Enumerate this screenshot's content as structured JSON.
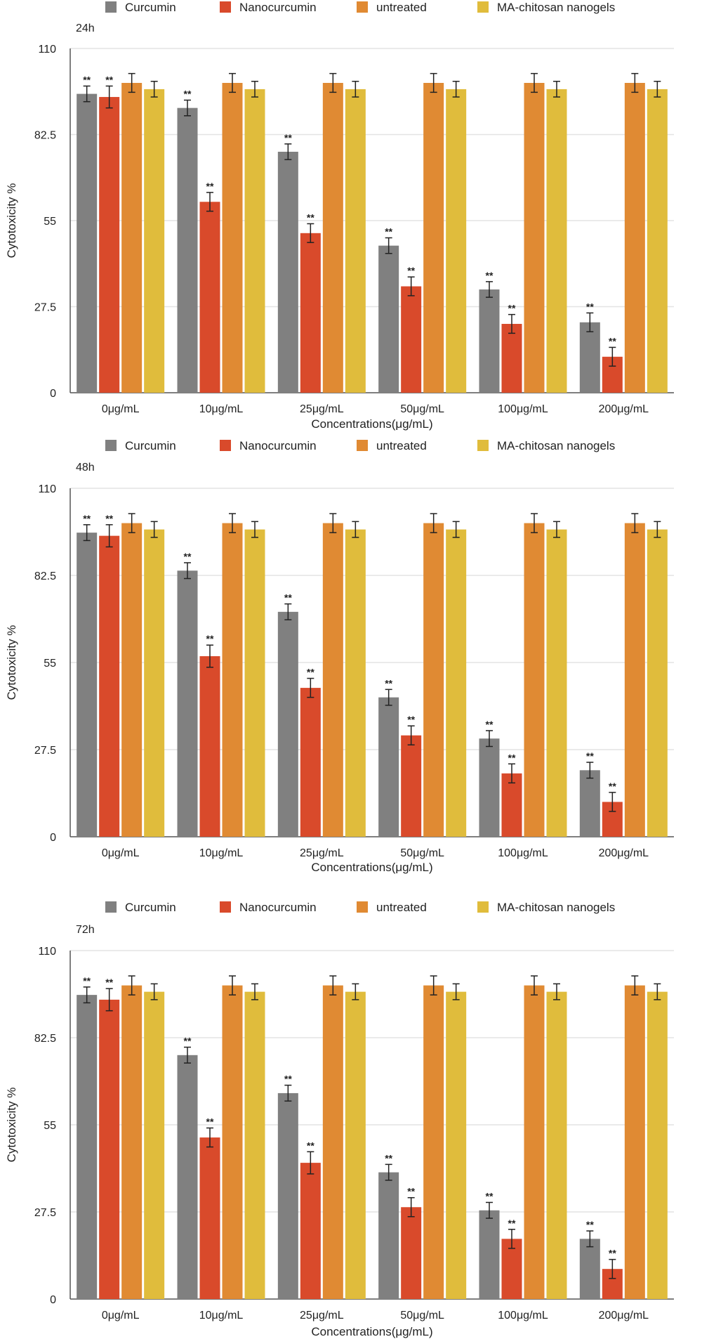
{
  "colors": {
    "Curcumin": "#808080",
    "Nanocurcumin": "#d94a2b",
    "untreated": "#e08a33",
    "MA-chitosan nanogels": "#e0bc3c",
    "grid": "#e4e4e4",
    "axis": "#555555"
  },
  "chart_data": [
    {
      "type": "bar",
      "panel_label": "24h",
      "categories": [
        "0μg/mL",
        "10μg/mL",
        "25μg/mL",
        "50μg/mL",
        "100μg/mL",
        "200μg/mL"
      ],
      "xlabel": "Concentrations(μg/mL)",
      "ylabel": "Cytotoxicity  %",
      "ylim": [
        0,
        110
      ],
      "yticks": [
        "0",
        "27.5",
        "55",
        "82.5",
        "110"
      ],
      "grid": true,
      "legend": "top",
      "significance_label": "**",
      "significant_series": [
        "Curcumin",
        "Nanocurcumin"
      ],
      "series": [
        {
          "name": "Curcumin",
          "values": [
            95.5,
            91,
            77,
            47,
            33,
            22.5
          ],
          "errors": [
            2.5,
            2.5,
            2.5,
            2.5,
            2.5,
            3
          ]
        },
        {
          "name": "Nanocurcumin",
          "values": [
            94.5,
            61,
            51,
            34,
            22,
            11.5
          ],
          "errors": [
            3.5,
            3,
            3,
            3,
            3,
            3
          ]
        },
        {
          "name": "untreated",
          "values": [
            99,
            99,
            99,
            99,
            99,
            99
          ],
          "errors": [
            3,
            3,
            3,
            3,
            3,
            3
          ]
        },
        {
          "name": "MA-chitosan nanogels",
          "values": [
            97,
            97,
            97,
            97,
            97,
            97
          ],
          "errors": [
            2.5,
            2.5,
            2.5,
            2.5,
            2.5,
            2.5
          ]
        }
      ]
    },
    {
      "type": "bar",
      "panel_label": "48h",
      "categories": [
        "0μg/mL",
        "10μg/mL",
        "25μg/mL",
        "50μg/mL",
        "100μg/mL",
        "200μg/mL"
      ],
      "xlabel": "Concentrations(μg/mL)",
      "ylabel": "Cytotoxicity  %",
      "ylim": [
        0,
        110
      ],
      "yticks": [
        "0",
        "27.5",
        "55",
        "82.5",
        "110"
      ],
      "grid": true,
      "legend": "top",
      "significance_label": "**",
      "significant_series": [
        "Curcumin",
        "Nanocurcumin"
      ],
      "series": [
        {
          "name": "Curcumin",
          "values": [
            96,
            84,
            71,
            44,
            31,
            21
          ],
          "errors": [
            2.5,
            2.5,
            2.5,
            2.5,
            2.5,
            2.5
          ]
        },
        {
          "name": "Nanocurcumin",
          "values": [
            95,
            57,
            47,
            32,
            20,
            11
          ],
          "errors": [
            3.5,
            3.5,
            3,
            3,
            3,
            3
          ]
        },
        {
          "name": "untreated",
          "values": [
            99,
            99,
            99,
            99,
            99,
            99
          ],
          "errors": [
            3,
            3,
            3,
            3,
            3,
            3
          ]
        },
        {
          "name": "MA-chitosan nanogels",
          "values": [
            97,
            97,
            97,
            97,
            97,
            97
          ],
          "errors": [
            2.5,
            2.5,
            2.5,
            2.5,
            2.5,
            2.5
          ]
        }
      ]
    },
    {
      "type": "bar",
      "panel_label": "72h",
      "categories": [
        "0μg/mL",
        "10μg/mL",
        "25μg/mL",
        "50μg/mL",
        "100μg/mL",
        "200μg/mL"
      ],
      "xlabel": "Concentrations(μg/mL)",
      "ylabel": "Cytotoxicity  %",
      "ylim": [
        0,
        110
      ],
      "yticks": [
        "0",
        "27.5",
        "55",
        "82.5",
        "110"
      ],
      "grid": true,
      "legend": "top",
      "significance_label": "**",
      "significant_series": [
        "Curcumin",
        "Nanocurcumin"
      ],
      "series": [
        {
          "name": "Curcumin",
          "values": [
            96,
            77,
            65,
            40,
            28,
            19
          ],
          "errors": [
            2.5,
            2.5,
            2.5,
            2.5,
            2.5,
            2.5
          ]
        },
        {
          "name": "Nanocurcumin",
          "values": [
            94.5,
            51,
            43,
            29,
            19,
            9.5
          ],
          "errors": [
            3.5,
            3,
            3.5,
            3,
            3,
            3
          ]
        },
        {
          "name": "untreated",
          "values": [
            99,
            99,
            99,
            99,
            99,
            99
          ],
          "errors": [
            3,
            3,
            3,
            3,
            3,
            3
          ]
        },
        {
          "name": "MA-chitosan nanogels",
          "values": [
            97,
            97,
            97,
            97,
            97,
            97
          ],
          "errors": [
            2.5,
            2.5,
            2.5,
            2.5,
            2.5,
            2.5
          ]
        }
      ]
    }
  ]
}
